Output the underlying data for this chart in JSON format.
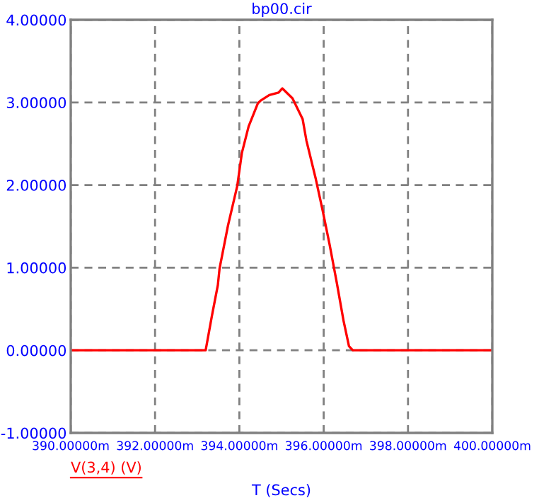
{
  "chart_data": {
    "type": "line",
    "title": "bp00.cir",
    "xlabel": "T (Secs)",
    "xlim": [
      390,
      400
    ],
    "ylim": [
      -1,
      4
    ],
    "xticks": [
      {
        "value": 390,
        "label": "390.00000m"
      },
      {
        "value": 392,
        "label": "392.00000m"
      },
      {
        "value": 394,
        "label": "394.00000m"
      },
      {
        "value": 396,
        "label": "396.00000m"
      },
      {
        "value": 398,
        "label": "398.00000m"
      },
      {
        "value": 400,
        "label": "400.00000m"
      }
    ],
    "yticks": [
      {
        "value": -1,
        "label": "-1.00000"
      },
      {
        "value": 0,
        "label": "0.00000"
      },
      {
        "value": 1,
        "label": "1.00000"
      },
      {
        "value": 2,
        "label": "2.00000"
      },
      {
        "value": 3,
        "label": "3.00000"
      },
      {
        "value": 4,
        "label": "4.00000"
      }
    ],
    "grid": true,
    "legend": "bottom left",
    "line_style": "solid",
    "series": [
      {
        "name": "V(3,4) (V)",
        "color": "#ff0000",
        "x": [
          390,
          393.2,
          393.35,
          393.49,
          393.53,
          393.73,
          393.95,
          394.06,
          394.22,
          394.44,
          394.5,
          394.71,
          394.93,
          395.02,
          395.26,
          395.5,
          395.59,
          395.81,
          395.98,
          396.14,
          396.31,
          396.47,
          396.6,
          396.69,
          400
        ],
        "values": [
          0,
          0,
          0.42,
          0.79,
          0.99,
          1.51,
          1.99,
          2.39,
          2.71,
          2.99,
          3.02,
          3.09,
          3.12,
          3.17,
          3.05,
          2.8,
          2.54,
          2.08,
          1.68,
          1.28,
          0.82,
          0.36,
          0.05,
          0,
          0
        ]
      }
    ]
  }
}
